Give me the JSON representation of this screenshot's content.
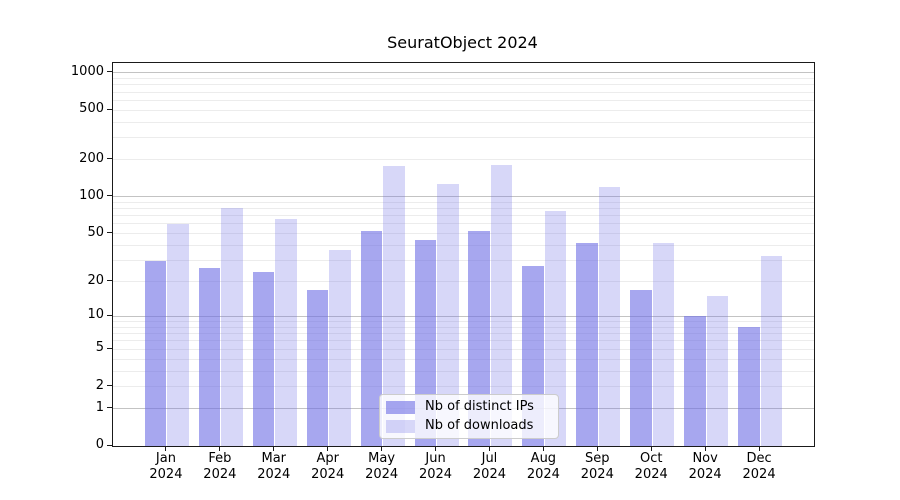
{
  "title": "SeuratObject 2024",
  "chart_data": {
    "type": "bar",
    "title": "SeuratObject 2024",
    "categories": [
      "Jan",
      "Feb",
      "Mar",
      "Apr",
      "May",
      "Jun",
      "Jul",
      "Aug",
      "Sep",
      "Oct",
      "Nov",
      "Dec"
    ],
    "year_label": "2024",
    "series": [
      {
        "name": "Nb of distinct IPs",
        "key": "distinct-ips",
        "color": "rgba(109,109,228,0.60)",
        "values": [
          30,
          26,
          24,
          17,
          53,
          44,
          53,
          27,
          42,
          17,
          10,
          8
        ]
      },
      {
        "name": "Nb of downloads",
        "key": "downloads",
        "color": "rgba(109,109,228,0.27)",
        "values": [
          60,
          81,
          66,
          37,
          177,
          128,
          181,
          76,
          120,
          42,
          15,
          33
        ]
      }
    ],
    "xlabel": "",
    "ylabel": "",
    "y_scale": "log1p",
    "ylim": [
      0,
      1200
    ],
    "y_ticks": [
      0,
      1,
      2,
      5,
      10,
      20,
      50,
      100,
      200,
      500,
      1000
    ],
    "grid_major": [
      1,
      10,
      100,
      1000
    ],
    "grid_minor_mantissas": [
      2,
      3,
      4,
      5,
      6,
      7,
      8,
      9
    ],
    "grid": "on",
    "legend_position": "lower center"
  },
  "colors": {
    "background": "#ffffff",
    "spine": "#1a1a1a",
    "grid_major": "#c3c3c3",
    "grid_minor": "#ececec",
    "text": "#000000",
    "legend_border": "#cccccc",
    "legend_background": "rgba(255,255,255,0.8)"
  }
}
